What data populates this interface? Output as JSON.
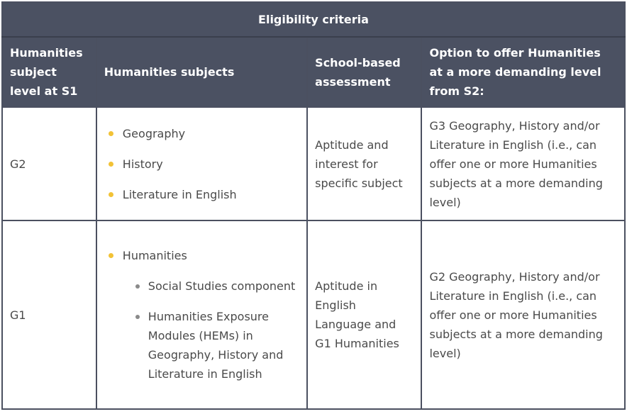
{
  "table": {
    "title": "Eligibility criteria",
    "headers": [
      "Humanities subject level at S1",
      "Humanities subjects",
      "School-based assessment",
      "Option to offer Humanities at a more demanding level from S2:"
    ],
    "rows": [
      {
        "level": "G2",
        "subjects": [
          "Geography",
          "History",
          "Literature in English"
        ],
        "assessment": "Aptitude and interest for specific subject",
        "option": "G3 Geography, History and/or Literature in English (i.e., can offer one or more Humanities subjects at a more demanding level)"
      },
      {
        "level": "G1",
        "subject_main": "Humanities",
        "subject_sub": [
          "Social Studies component",
          "Humanities Exposure Modules (HEMs) in Geography, History and Literature in English"
        ],
        "assessment": "Aptitude in English Language and G1 Humanities",
        "option": "G2 Geography, History and/or Literature in English (i.e., can offer one or more Humanities subjects at a more demanding level)"
      }
    ],
    "colors": {
      "header_bg": "#4b5162",
      "border": "#4b5060",
      "bullet_primary": "#f2c236",
      "bullet_secondary": "#8a8a8a",
      "text": "#4a4a4a"
    }
  }
}
